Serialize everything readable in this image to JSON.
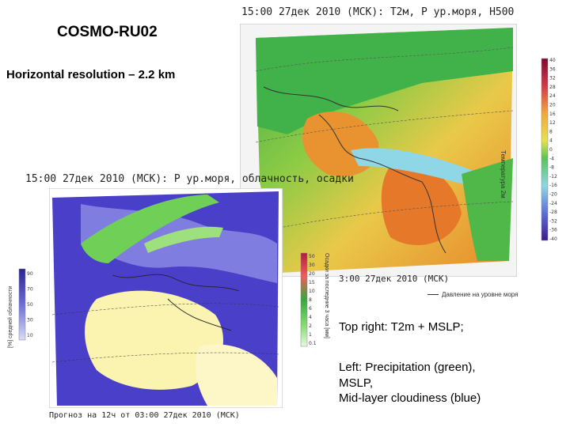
{
  "slide": {
    "title": "COSMO-RU02",
    "subtitle": "Horizontal resolution – 2.2 km"
  },
  "top_map": {
    "header": "15:00 27дек 2010 (МСК): Т2м, P ур.моря, H500",
    "time_label": "3:00 27дек 2010 (МСК)",
    "mslp_legend": "Давление на уровне моря",
    "colorbar_label": "Температура 2м",
    "colorbar_ticks": [
      "40",
      "36",
      "32",
      "28",
      "24",
      "20",
      "16",
      "12",
      "8",
      "4",
      "0",
      "-4",
      "-8",
      "-12",
      "-16",
      "-20",
      "-24",
      "-28",
      "-32",
      "-36",
      "-40"
    ],
    "colors": {
      "warm": "#e8862a",
      "mid": "#e9c949",
      "green": "#4fb848",
      "cold": "#8fd6e6"
    }
  },
  "left_map": {
    "header": "15:00 27дек 2010 (МСК): P ур.моря, облачность, осадки",
    "forecast_label": "Прогноз на 12ч от 03:00 27дек 2010 (МСК)",
    "cloud_axis_label": "[%] средней облачности",
    "cloud_ticks": [
      "90",
      "70",
      "50",
      "30",
      "10"
    ],
    "precip_axis_label": "Осадки за последние 3 часа [мм]",
    "precip_ticks": [
      "50",
      "30",
      "20",
      "15",
      "10",
      "8",
      "6",
      "4",
      "2",
      "1",
      "0.1"
    ],
    "colors": {
      "cloud": "#4a3fc9",
      "clear": "#fbf3b0",
      "precip": "#6fcf57"
    }
  },
  "notes": {
    "top_right": "Top right: T2m + MSLP;",
    "left": "Left: Precipitation (green),\nMSLP,\nMid-layer cloudiness (blue)"
  }
}
